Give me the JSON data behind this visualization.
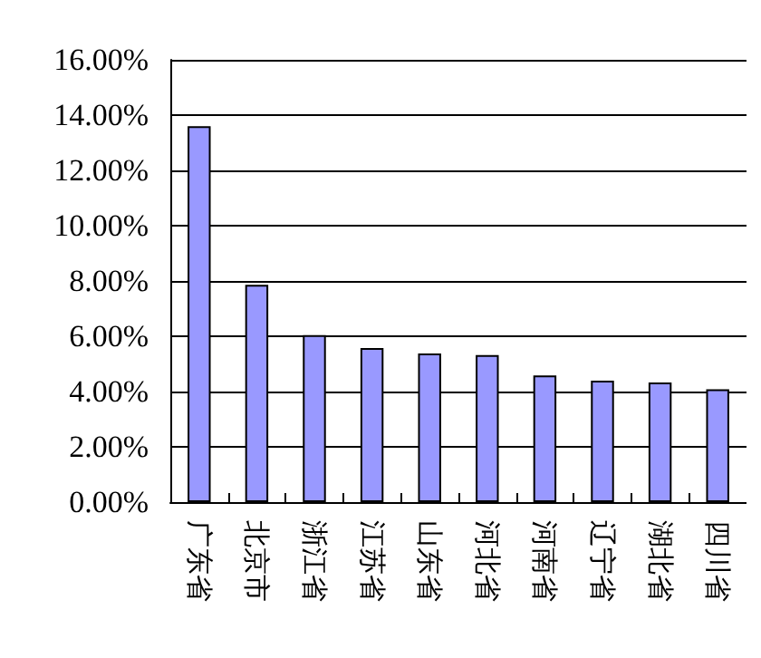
{
  "chart_data": {
    "type": "bar",
    "categories": [
      "广东省",
      "北京市",
      "浙江省",
      "江苏省",
      "山东省",
      "河北省",
      "河南省",
      "辽宁省",
      "湖北省",
      "四川省"
    ],
    "values": [
      13.6,
      7.86,
      6.04,
      5.57,
      5.38,
      5.32,
      4.58,
      4.39,
      4.33,
      4.08
    ],
    "color": "#9999ff",
    "ylim": [
      0,
      16
    ],
    "yticks": [
      {
        "value": 0,
        "label": "0.00%"
      },
      {
        "value": 2,
        "label": "2.00%"
      },
      {
        "value": 4,
        "label": "4.00%"
      },
      {
        "value": 6,
        "label": "6.00%"
      },
      {
        "value": 8,
        "label": "8.00%"
      },
      {
        "value": 10,
        "label": "10.00%"
      },
      {
        "value": 12,
        "label": "12.00%"
      },
      {
        "value": 14,
        "label": "14.00%"
      },
      {
        "value": 16,
        "label": "16.00%"
      }
    ],
    "grid": "y"
  }
}
